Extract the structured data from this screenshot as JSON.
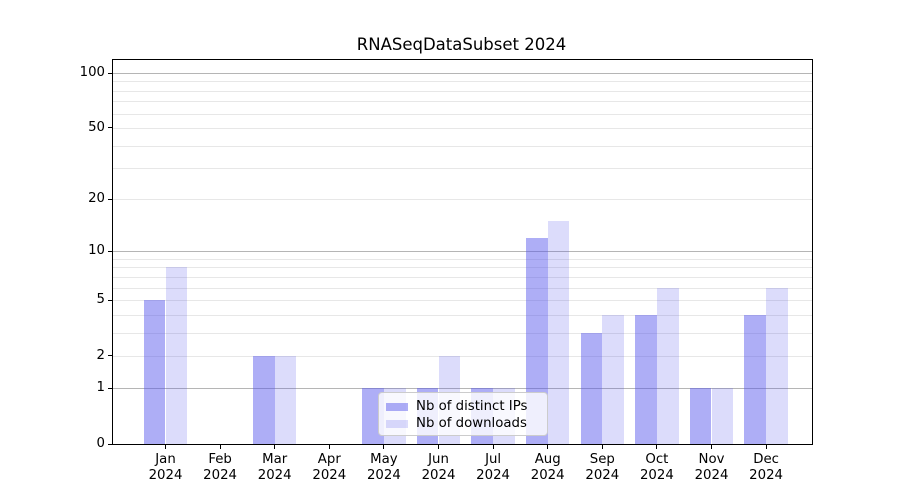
{
  "title": "RNASeqDataSubset 2024",
  "chart_data": {
    "type": "bar",
    "title": "RNASeqDataSubset 2024",
    "categories": [
      "Jan 2024",
      "Feb 2024",
      "Mar 2024",
      "Apr 2024",
      "May 2024",
      "Jun 2024",
      "Jul 2024",
      "Aug 2024",
      "Sep 2024",
      "Oct 2024",
      "Nov 2024",
      "Dec 2024"
    ],
    "x_tick_line1": [
      "Jan",
      "Feb",
      "Mar",
      "Apr",
      "May",
      "Jun",
      "Jul",
      "Aug",
      "Sep",
      "Oct",
      "Nov",
      "Dec"
    ],
    "x_tick_line2": "2024",
    "series": [
      {
        "name": "Nb of distinct IPs",
        "color": "rgba(82,82,235,0.47)",
        "values": [
          5,
          0,
          2,
          0,
          1,
          1,
          1,
          12,
          3,
          4,
          1,
          4
        ]
      },
      {
        "name": "Nb of downloads",
        "color": "rgba(82,82,235,0.20)",
        "values": [
          8,
          0,
          2,
          0,
          1,
          2,
          1,
          15,
          4,
          6,
          1,
          6
        ]
      }
    ],
    "yscale": "log1p",
    "ylim": [
      0,
      118
    ],
    "yticks": [
      0,
      1,
      2,
      5,
      10,
      20,
      50,
      100
    ],
    "ytick_labels": [
      "0",
      "1",
      "2",
      "5",
      "10",
      "20",
      "50",
      "100"
    ],
    "grid": {
      "major_values": [
        1,
        10,
        100
      ],
      "minor_values": [
        2,
        3,
        4,
        5,
        6,
        7,
        8,
        9,
        20,
        30,
        40,
        50,
        60,
        70,
        80,
        90
      ],
      "major_color": "#b5b5b5",
      "minor_color": "#e7e7e7"
    },
    "legend_position": "inside-lower-center",
    "xlabel": "",
    "ylabel": ""
  },
  "legend": {
    "items": [
      {
        "label": "Nb of distinct IPs",
        "color": "rgba(82,82,235,0.47)"
      },
      {
        "label": "Nb of downloads",
        "color": "rgba(82,82,235,0.20)"
      }
    ]
  },
  "colors": {
    "series_dark": "rgba(82,82,235,0.47)",
    "series_light": "rgba(82,82,235,0.20)",
    "spine": "#000000",
    "background": "#ffffff"
  }
}
